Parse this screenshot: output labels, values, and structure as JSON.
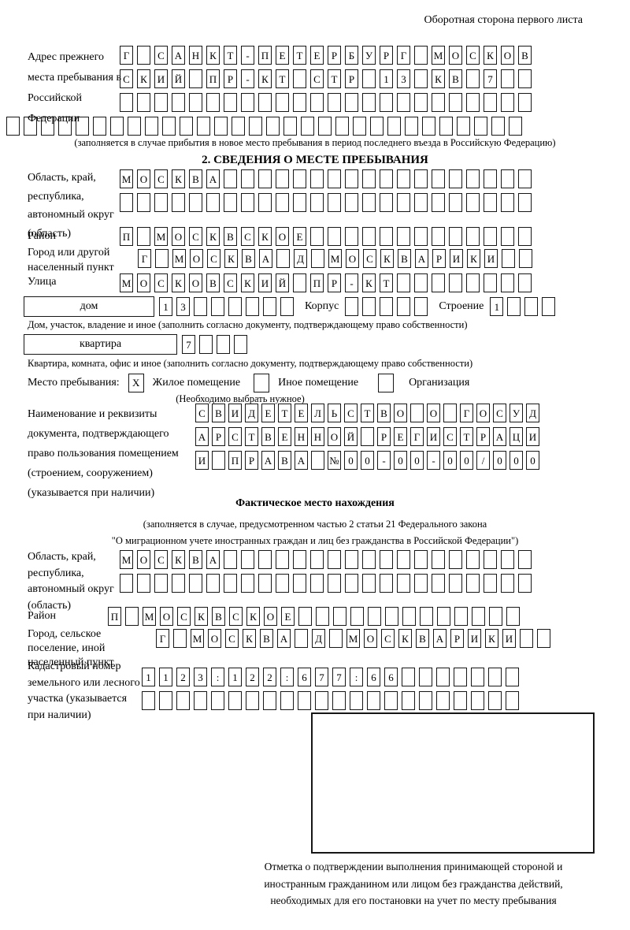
{
  "page_header": "Оборотная сторона первого листа",
  "colors": {
    "ink": "#000000",
    "paper": "#ffffff"
  },
  "prev_address": {
    "label": "Адрес прежнего места пребывания в Российской Федерации",
    "row1": [
      "Г",
      "",
      "С",
      "А",
      "Н",
      "К",
      "Т",
      "-",
      "П",
      "Е",
      "Т",
      "Е",
      "Р",
      "Б",
      "У",
      "Р",
      "Г",
      "",
      "М",
      "О",
      "С",
      "К",
      "О",
      "В"
    ],
    "row2": [
      "С",
      "К",
      "И",
      "Й",
      "",
      "П",
      "Р",
      "-",
      "К",
      "Т",
      "",
      "С",
      "Т",
      "Р",
      "",
      "1",
      "3",
      "",
      "К",
      "В",
      "",
      "7",
      "",
      ""
    ],
    "row3_empty": 24,
    "row4_empty": 30,
    "note": "(заполняется в случае прибытия в новое место пребывания в период последнего въезда в Российскую Федерацию)"
  },
  "section2": {
    "title": "2. СВЕДЕНИЯ О МЕСТЕ ПРЕБЫВАНИЯ",
    "region": {
      "label": "Область, край, республика, автономный округ (область)",
      "row1": [
        "М",
        "О",
        "С",
        "К",
        "В",
        "А",
        "",
        "",
        "",
        "",
        "",
        "",
        "",
        "",
        "",
        "",
        "",
        "",
        "",
        "",
        "",
        "",
        "",
        ""
      ],
      "row2_empty": 24
    },
    "district": {
      "label": "Район",
      "row": [
        "П",
        "",
        "М",
        "О",
        "С",
        "К",
        "В",
        "С",
        "К",
        "О",
        "Е",
        "",
        "",
        "",
        "",
        "",
        "",
        "",
        "",
        "",
        "",
        "",
        "",
        ""
      ]
    },
    "city": {
      "label": "Город или другой населенный пункт",
      "row": [
        "Г",
        "",
        "М",
        "О",
        "С",
        "К",
        "В",
        "А",
        "",
        "Д",
        "",
        "М",
        "О",
        "С",
        "К",
        "В",
        "А",
        "Р",
        "И",
        "К",
        "И",
        "",
        ""
      ]
    },
    "street": {
      "label": "Улица",
      "row": [
        "М",
        "О",
        "С",
        "К",
        "О",
        "В",
        "С",
        "К",
        "И",
        "Й",
        "",
        "П",
        "Р",
        "-",
        "К",
        "Т",
        "",
        "",
        "",
        "",
        "",
        "",
        "",
        ""
      ]
    },
    "house": {
      "box_label": "дом",
      "cells": [
        "1",
        "3",
        "",
        "",
        "",
        "",
        "",
        ""
      ],
      "korpus_label": "Корпус",
      "korpus_empty": 5,
      "stroenie_label": "Строение",
      "stroenie_cells": [
        "1",
        "",
        "",
        ""
      ]
    },
    "house_note": "Дом, участок, владение и иное (заполнить согласно документу, подтверждающему право собственности)",
    "apartment": {
      "box_label": "квартира",
      "cells": [
        "7",
        "",
        "",
        ""
      ]
    },
    "apartment_note": "Квартира, комната, офис и иное (заполнить согласно документу, подтверждающему право собственности)",
    "stay_type": {
      "label": "Место пребывания:",
      "options": [
        {
          "mark": "X",
          "label": "Жилое помещение"
        },
        {
          "mark": "",
          "label": "Иное помещение"
        },
        {
          "mark": "",
          "label": "Организация"
        }
      ],
      "note": "(Необходимо выбрать нужное)"
    },
    "document": {
      "label": "Наименование и реквизиты документа, подтверждающего право пользования помещением (строением, сооружением) (указывается при наличии)",
      "row1": [
        "С",
        "В",
        "И",
        "Д",
        "Е",
        "Т",
        "Е",
        "Л",
        "Ь",
        "С",
        "Т",
        "В",
        "О",
        "",
        "О",
        "",
        "Г",
        "О",
        "С",
        "У",
        "Д"
      ],
      "row2": [
        "А",
        "Р",
        "С",
        "Т",
        "В",
        "Е",
        "Н",
        "Н",
        "О",
        "Й",
        "",
        "Р",
        "Е",
        "Г",
        "И",
        "С",
        "Т",
        "Р",
        "А",
        "Ц",
        "И"
      ],
      "row3": [
        "И",
        "",
        "П",
        "Р",
        "А",
        "В",
        "А",
        "",
        "№",
        "0",
        "0",
        "-",
        "0",
        "0",
        "-",
        "0",
        "0",
        "/",
        "0",
        "0",
        "0"
      ]
    }
  },
  "actual_location": {
    "title": "Фактическое место нахождения",
    "note1": "(заполняется в случае, предусмотренном частью 2 статьи 21 Федерального закона",
    "note2": "\"О миграционном учете иностранных граждан и лиц без гражданства в Российской Федерации\")",
    "region": {
      "label": "Область, край, республика, автономный округ (область)",
      "row1": [
        "М",
        "О",
        "С",
        "К",
        "В",
        "А",
        "",
        "",
        "",
        "",
        "",
        "",
        "",
        "",
        "",
        "",
        "",
        "",
        "",
        "",
        "",
        "",
        "",
        ""
      ],
      "row2_empty": 24
    },
    "district": {
      "label": "Район",
      "row": [
        "П",
        "",
        "М",
        "О",
        "С",
        "К",
        "В",
        "С",
        "К",
        "О",
        "Е",
        "",
        "",
        "",
        "",
        "",
        "",
        "",
        "",
        "",
        "",
        "",
        "",
        ""
      ]
    },
    "city": {
      "label": "Город, сельское поселение, иной населенный пункт",
      "row": [
        "Г",
        "",
        "М",
        "О",
        "С",
        "К",
        "В",
        "А",
        "",
        "Д",
        "",
        "М",
        "О",
        "С",
        "К",
        "В",
        "А",
        "Р",
        "И",
        "К",
        "И",
        "",
        ""
      ]
    },
    "cadastre": {
      "label": "Кадастровый номер земельного или лесного участка (указывается при наличии)",
      "row1": [
        "1",
        "1",
        "2",
        "3",
        ":",
        "1",
        "2",
        "2",
        ":",
        "6",
        "7",
        "7",
        ":",
        "6",
        "6",
        "",
        "",
        "",
        "",
        "",
        "",
        ""
      ],
      "row2_empty": 22
    },
    "stamp_caption": "Отметка о подтверждении выполнения принимающей стороной и иностранным гражданином или лицом без гражданства действий, необходимых для его постановки на учет по месту пребывания"
  }
}
